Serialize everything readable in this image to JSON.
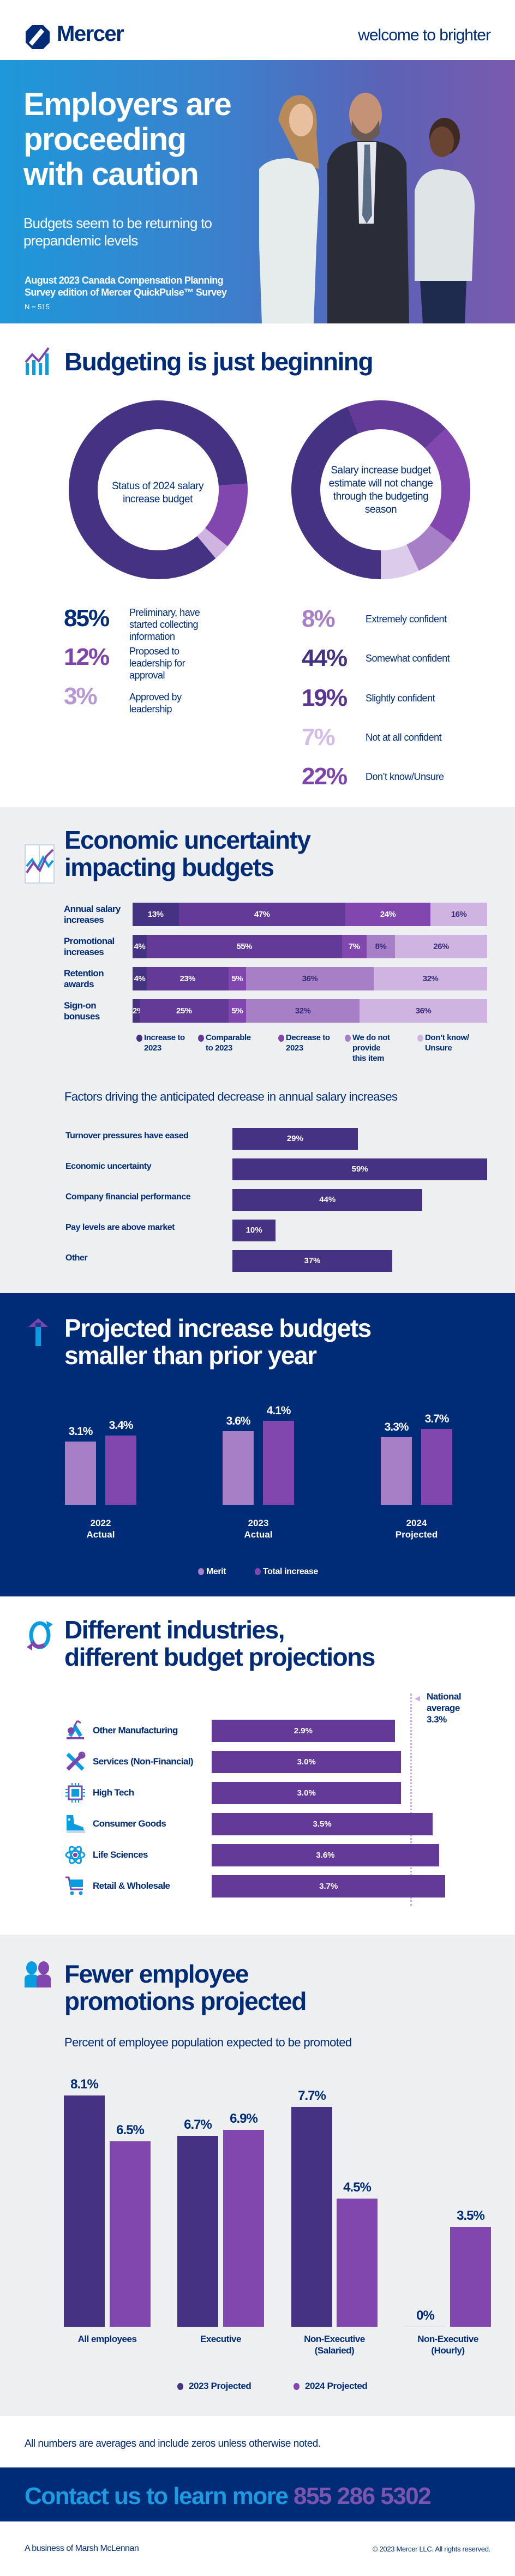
{
  "header": {
    "logo_text": "Mercer",
    "tagline": "welcome to brighter"
  },
  "hero": {
    "title_lines": [
      "Employers are",
      "proceeding",
      "with caution"
    ],
    "subtitle": "Budgets seem to be returning to prepandemic levels",
    "survey_note": "August 2023 Canada Compensation Planning Survey edition of Mercer QuickPulse™ Survey",
    "sample_size": "N = 515"
  },
  "budgeting": {
    "title": "Budgeting is just beginning"
  },
  "economic": {
    "title_lines": [
      "Economic uncertainty",
      "impacting budgets"
    ]
  },
  "projected": {
    "title_lines": [
      "Projected increase budgets",
      "smaller than prior year"
    ]
  },
  "industries": {
    "title_lines": [
      "Different industries,",
      "different budget projections"
    ],
    "average_label_lines": [
      "National",
      "average",
      "3.3%"
    ]
  },
  "promotions": {
    "title_lines": [
      "Fewer employee",
      "promotions projected"
    ]
  },
  "footer": {
    "note": "All numbers are averages and include zeros unless otherwise noted.",
    "contact_text": "Contact us to learn more",
    "phone": "855 286 5302",
    "business": "A business of Marsh McLennan",
    "copyright": "© 2023 Mercer LLC. All rights reserved."
  },
  "colors": {
    "navy": "#002c77",
    "dark_purple": "#463282",
    "purple": "#643a98",
    "mid_purple": "#8246af",
    "light_purple": "#a77fc6",
    "lightest_purple": "#cfb3e1",
    "gray_bg": "#eeeff1",
    "blue": "#0a9ce0"
  },
  "chart_data": [
    {
      "type": "pie",
      "title": "Status of 2024 salary increase budget",
      "slices": [
        {
          "label": "Preliminary, have started collecting information",
          "value": 85,
          "display": "85%",
          "color": "#463282",
          "num_color": "#002c77"
        },
        {
          "label": "Proposed to leadership for approval",
          "value": 12,
          "display": "12%",
          "color": "#8246af",
          "num_color": "#7d45ab"
        },
        {
          "label": "Approved by leadership",
          "value": 3,
          "display": "3%",
          "color": "#cfb3e1",
          "num_color": "#b898d3"
        }
      ]
    },
    {
      "type": "pie",
      "title": "Salary increase budget estimate will not change through the budgeting season",
      "slices": [
        {
          "label": "Extremely confident",
          "value": 8,
          "display": "8%",
          "color": "#a77fc6",
          "num_color": "#a77fc6"
        },
        {
          "label": "Somewhat confident",
          "value": 44,
          "display": "44%",
          "color": "#463282",
          "num_color": "#463282"
        },
        {
          "label": "Slightly confident",
          "value": 19,
          "display": "19%",
          "color": "#643a98",
          "num_color": "#5b3592"
        },
        {
          "label": "Not at all confident",
          "value": 7,
          "display": "7%",
          "color": "#dccbea",
          "num_color": "#d3bde6"
        },
        {
          "label": "Don’t know/Unsure",
          "value": 22,
          "display": "22%",
          "color": "#8246af",
          "num_color": "#7d45ab"
        }
      ]
    },
    {
      "type": "bar",
      "orientation": "horizontal-stacked",
      "categories": [
        "Annual salary increases",
        "Promotional increases",
        "Retention awards",
        "Sign-on bonuses"
      ],
      "series": [
        {
          "name": "Increase to 2023",
          "values": [
            13,
            4,
            4,
            2
          ],
          "color": "#463282"
        },
        {
          "name": "Comparable to 2023",
          "values": [
            47,
            55,
            23,
            25
          ],
          "color": "#643a98"
        },
        {
          "name": "Decrease to 2023",
          "values": [
            24,
            7,
            5,
            5
          ],
          "color": "#8246af"
        },
        {
          "name": "We do not provide this item",
          "values": [
            0,
            8,
            36,
            32
          ],
          "color": "#a77fc6"
        },
        {
          "name": "Don’t know/ Unsure",
          "values": [
            16,
            26,
            32,
            36
          ],
          "color": "#cfb3e1"
        }
      ],
      "legend": "bottom"
    },
    {
      "type": "bar",
      "orientation": "horizontal",
      "title": "Factors driving the anticipated decrease in annual salary increases",
      "categories": [
        "Turnover pressures have eased",
        "Economic uncertainty",
        "Company financial performance",
        "Pay levels are above market",
        "Other"
      ],
      "values": [
        29,
        59,
        44,
        10,
        37
      ],
      "color": "#463282"
    },
    {
      "type": "bar",
      "categories": [
        [
          "2022",
          "Actual"
        ],
        [
          "2023",
          "Actual"
        ],
        [
          "2024",
          "Projected"
        ]
      ],
      "series": [
        {
          "name": "Merit",
          "values": [
            3.1,
            3.6,
            3.3
          ],
          "color": "#a77fc6"
        },
        {
          "name": "Total increase",
          "values": [
            3.4,
            4.1,
            3.7
          ],
          "color": "#8246af"
        }
      ],
      "unit": "%",
      "legend": "bottom"
    },
    {
      "type": "bar",
      "orientation": "horizontal",
      "categories": [
        "Other Manufacturing",
        "Services (Non-Financial)",
        "High Tech",
        "Consumer Goods",
        "Life Sciences",
        "Retail & Wholesale"
      ],
      "icons": [
        "robot-arm-icon",
        "tools-icon",
        "chip-icon",
        "shoe-icon",
        "atom-icon",
        "cart-icon"
      ],
      "values": [
        2.9,
        3.0,
        3.0,
        3.5,
        3.6,
        3.7
      ],
      "reference_line": {
        "value": 3.3
      },
      "unit": "%",
      "color": "#643a98"
    },
    {
      "type": "bar",
      "title": "Percent of employee population expected to be promoted",
      "categories": [
        [
          "All employees"
        ],
        [
          "Executive"
        ],
        [
          "Non-Executive",
          "(Salaried)"
        ],
        [
          "Non-Executive",
          "(Hourly)"
        ]
      ],
      "series": [
        {
          "name": "2023 Projected",
          "values": [
            8.1,
            6.7,
            7.7,
            0
          ],
          "color": "#463282"
        },
        {
          "name": "2024 Projected",
          "values": [
            6.5,
            6.9,
            4.5,
            3.5
          ],
          "color": "#8246af"
        }
      ],
      "unit": "%",
      "legend": "bottom"
    }
  ]
}
